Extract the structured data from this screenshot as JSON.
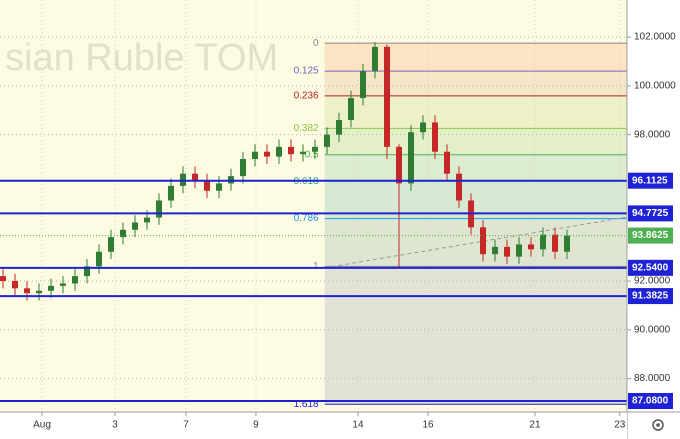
{
  "chart_data": {
    "type": "candlestick",
    "watermark": "sian Ruble TOM",
    "open": [
      92.2,
      92.0,
      91.7,
      91.5,
      91.6,
      91.8,
      91.9,
      92.2,
      92.6,
      93.2,
      93.8,
      94.1,
      94.4,
      94.6,
      95.3,
      95.9,
      96.4,
      96.1,
      95.7,
      96.0,
      96.3,
      97.0,
      97.3,
      97.1,
      97.5,
      97.2,
      97.3,
      97.5,
      98.0,
      98.6,
      99.5,
      100.6,
      101.6,
      97.5,
      96.0,
      98.1,
      98.5,
      97.3,
      96.4,
      95.3,
      94.2,
      93.1,
      93.4,
      93.0,
      93.5,
      93.3,
      93.9,
      93.2
    ],
    "high": [
      92.5,
      92.3,
      92.0,
      91.9,
      92.1,
      92.2,
      92.5,
      92.9,
      93.5,
      94.1,
      94.4,
      94.7,
      94.9,
      95.6,
      96.2,
      96.7,
      96.7,
      96.4,
      96.3,
      96.6,
      97.3,
      97.6,
      97.6,
      97.8,
      97.8,
      97.6,
      97.8,
      98.3,
      98.9,
      99.8,
      100.9,
      101.8,
      101.7,
      97.6,
      98.4,
      98.8,
      98.8,
      97.6,
      96.7,
      95.6,
      94.5,
      93.7,
      93.7,
      93.8,
      93.8,
      94.2,
      94.2,
      94.1
    ],
    "low": [
      91.7,
      91.4,
      91.2,
      91.2,
      91.3,
      91.5,
      91.6,
      91.9,
      92.3,
      92.9,
      93.5,
      93.8,
      94.1,
      94.3,
      95.0,
      95.6,
      95.8,
      95.4,
      95.4,
      95.7,
      96.0,
      96.7,
      96.8,
      96.8,
      96.9,
      96.9,
      97.0,
      97.2,
      97.7,
      98.3,
      99.2,
      100.3,
      97.0,
      92.54,
      95.7,
      97.8,
      97.0,
      96.1,
      95.0,
      93.9,
      92.8,
      92.8,
      92.7,
      92.7,
      93.0,
      93.0,
      92.9,
      92.9
    ],
    "close": [
      92.0,
      91.7,
      91.5,
      91.6,
      91.8,
      91.9,
      92.2,
      92.6,
      93.2,
      93.8,
      94.1,
      94.4,
      94.6,
      95.3,
      95.9,
      96.4,
      96.1,
      95.7,
      96.0,
      96.3,
      97.0,
      97.3,
      97.1,
      97.5,
      97.2,
      97.3,
      97.5,
      98.0,
      98.6,
      99.5,
      100.6,
      101.6,
      97.5,
      96.0,
      98.1,
      98.5,
      97.3,
      96.4,
      95.3,
      94.2,
      93.1,
      93.4,
      93.0,
      93.5,
      93.3,
      93.9,
      93.2,
      93.86
    ],
    "up_color": "#2e7d32",
    "down_color": "#c62828",
    "xlim": [
      -0.25,
      52
    ],
    "xticks": [
      {
        "value": 3.25,
        "label": "Aug"
      },
      {
        "value": 9.33,
        "label": "3"
      },
      {
        "value": 15.25,
        "label": "7"
      },
      {
        "value": 21.08,
        "label": "9"
      },
      {
        "value": 29.58,
        "label": "14"
      },
      {
        "value": 35.42,
        "label": "16"
      },
      {
        "value": 44.33,
        "label": "21"
      },
      {
        "value": 51.4,
        "label": "23"
      }
    ],
    "ylim": [
      86.63,
      103.52
    ],
    "yticks": [
      {
        "value": 102,
        "label": "102.0000"
      },
      {
        "value": 100,
        "label": "100.0000"
      },
      {
        "value": 98,
        "label": "98.0000"
      },
      {
        "value": 92,
        "label": "92.0000"
      },
      {
        "value": 90,
        "label": "90.0000"
      },
      {
        "value": 88,
        "label": "88.0000"
      }
    ],
    "grid": true,
    "levels": [
      96.1125,
      94.7725,
      {
        "value": 92.54,
        "label": "92.5400"
      },
      91.3825,
      {
        "value": 87.08,
        "label": "87.0800"
      }
    ],
    "level_color": "#1e22d4",
    "last_price": 93.8625,
    "last_price_color": "#4caf50",
    "fib": {
      "start": 26.8,
      "high": 101.75,
      "low": 92.6,
      "levels": [
        0,
        0.125,
        0.236,
        0.382,
        0.5,
        0.618,
        0.786,
        1,
        1.618
      ],
      "colors": [
        "#888888",
        "#7b5fc4",
        "#b22222",
        "#8bc34a",
        "#4caf50",
        "#26a69a",
        "#2196f3",
        "#888888",
        "#1e22d4"
      ],
      "fills": [
        "#fbe3c4",
        "#f6e6c8",
        "#eef0c8",
        "#e3efc8",
        "#dcecd0",
        "#d8e9d3",
        "#dfe6d0",
        "#e2e3d6"
      ]
    },
    "trend": {
      "x": [
        26.8,
        52
      ],
      "y": [
        92.54,
        94.62
      ]
    }
  }
}
